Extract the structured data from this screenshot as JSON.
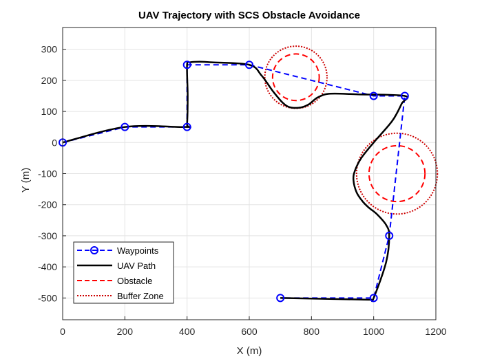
{
  "chart_data": {
    "type": "line",
    "title": "UAV Trajectory with SCS Obstacle Avoidance",
    "xlabel": "X (m)",
    "ylabel": "Y (m)",
    "xlim": [
      0,
      1200
    ],
    "ylim": [
      -570,
      370
    ],
    "xticks": [
      0,
      200,
      400,
      600,
      800,
      1000,
      1200
    ],
    "yticks": [
      300,
      200,
      100,
      0,
      -100,
      -200,
      -300,
      -400,
      -500
    ],
    "grid": true,
    "legend_position": "bottom-left",
    "legend": [
      "Waypoints",
      "UAV Path",
      "Obstacle",
      "Buffer Zone"
    ],
    "colors": {
      "waypoints": "#0000ff",
      "path": "#000000",
      "obstacle": "#ff0000",
      "buffer": "#cc0000"
    },
    "waypoints": {
      "x": [
        0,
        200,
        400,
        400,
        600,
        1000,
        1100,
        1050,
        1000,
        700
      ],
      "y": [
        0,
        50,
        50,
        250,
        250,
        150,
        150,
        -300,
        -500,
        -500
      ]
    },
    "uav_path": {
      "x": [
        0,
        200,
        395,
        400,
        402,
        400,
        410,
        440,
        480,
        600,
        640,
        680,
        720,
        760,
        790,
        820,
        860,
        950,
        1100,
        1090,
        1060,
        1000,
        960,
        940,
        935,
        945,
        965,
        985,
        1010,
        1040,
        1050,
        1040,
        1000,
        990,
        960,
        700
      ],
      "y": [
        0,
        50,
        50,
        60,
        150,
        250,
        258,
        260,
        258,
        250,
        215,
        160,
        118,
        112,
        122,
        145,
        157,
        155,
        150,
        125,
        70,
        0,
        -50,
        -90,
        -120,
        -160,
        -190,
        -210,
        -230,
        -265,
        -300,
        -385,
        -500,
        -505,
        -505,
        -500
      ]
    },
    "obstacles": [
      {
        "cx": 750,
        "cy": 210,
        "r": 75
      },
      {
        "cx": 1075,
        "cy": -100,
        "r": 90
      }
    ],
    "buffers": [
      {
        "cx": 750,
        "cy": 210,
        "r": 100
      },
      {
        "cx": 1075,
        "cy": -100,
        "r": 130
      }
    ]
  }
}
